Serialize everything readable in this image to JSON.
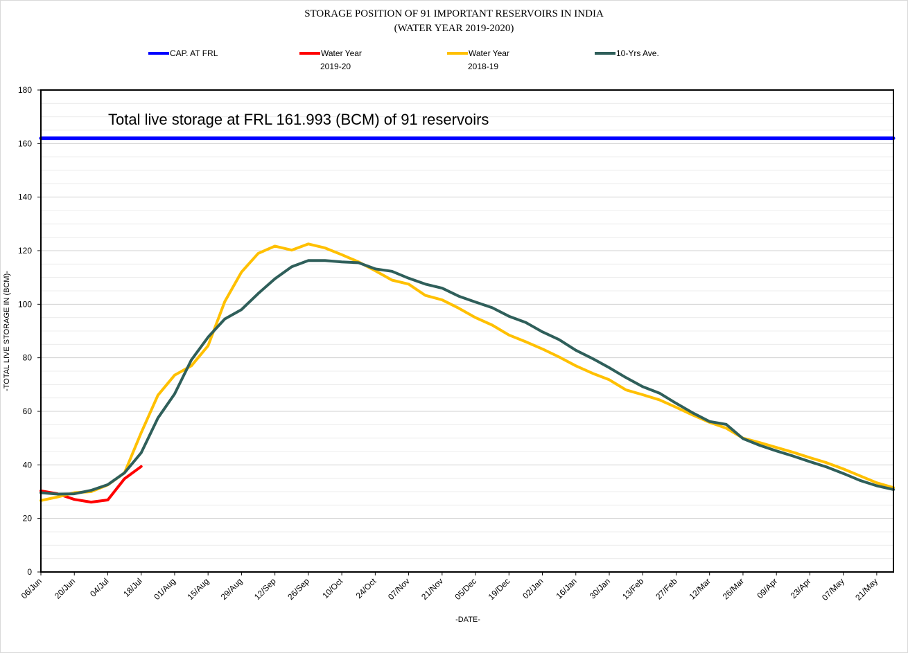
{
  "chart_data": {
    "type": "line",
    "title": "STORAGE POSITION OF 91 IMPORTANT RESERVOIRS IN INDIA",
    "subtitle": "(WATER YEAR 2019-2020)",
    "xlabel": "-DATE-",
    "ylabel": "-TOTAL LIVE STORAGE IN (BCM)-",
    "annotation": "Total live storage at FRL 161.993 (BCM) of 91 reservoirs",
    "ylim": [
      0,
      180
    ],
    "yticks": [
      0,
      20,
      40,
      60,
      80,
      100,
      120,
      140,
      160,
      180
    ],
    "grid": true,
    "legend_position": "top",
    "x_labels": [
      "06/Jun",
      "20/Jun",
      "04/Jul",
      "18/Jul",
      "01/Aug",
      "15/Aug",
      "29/Aug",
      "12/Sep",
      "26/Sep",
      "10/Oct",
      "24/Oct",
      "07/Nov",
      "21/Nov",
      "05/Dec",
      "19/Dec",
      "02/Jan",
      "16/Jan",
      "30/Jan",
      "13/Feb",
      "27/Feb",
      "12/Mar",
      "26/Mar",
      "09/Apr",
      "23/Apr",
      "07/May",
      "21/May"
    ],
    "weeks": 52,
    "series": [
      {
        "name": "CAP. AT FRL",
        "legend_lines": [
          "CAP. AT FRL"
        ],
        "color": "#0000ff",
        "constant": 161.993
      },
      {
        "name": "Water Year 2019-20",
        "legend_lines": [
          "Water Year",
          "2019-20"
        ],
        "color": "#ff0000",
        "values": [
          30.3,
          29.2,
          27.1,
          26.1,
          26.9,
          34.8,
          39.4
        ]
      },
      {
        "name": "Water Year 2018-19",
        "legend_lines": [
          "Water Year",
          "2018-19"
        ],
        "color": "#ffc000",
        "values": [
          26.7,
          28.0,
          29.6,
          30.0,
          32.5,
          37.0,
          52.0,
          66.0,
          73.5,
          77.0,
          84.5,
          101.0,
          112.0,
          119.0,
          121.7,
          120.2,
          122.5,
          121.0,
          118.5,
          115.8,
          112.5,
          109.0,
          107.5,
          103.3,
          101.6,
          98.5,
          95.0,
          92.2,
          88.5,
          86.0,
          83.3,
          80.3,
          77.0,
          74.2,
          71.8,
          68.0,
          66.2,
          64.3,
          61.5,
          58.6,
          55.9,
          53.7,
          50.0,
          48.3,
          46.5,
          44.7,
          42.7,
          40.8,
          38.5,
          35.9,
          33.3,
          31.5
        ]
      },
      {
        "name": "10-Yrs Ave.",
        "legend_lines": [
          "10-Yrs Ave."
        ],
        "color": "#2f5f5a",
        "values": [
          29.6,
          29.1,
          29.2,
          30.5,
          32.6,
          37.0,
          44.5,
          57.5,
          66.5,
          79.2,
          87.7,
          94.5,
          98.0,
          104.0,
          109.5,
          114.0,
          116.3,
          116.3,
          115.8,
          115.5,
          113.2,
          112.3,
          109.7,
          107.5,
          106.0,
          103.0,
          100.8,
          98.7,
          95.5,
          93.2,
          89.7,
          86.8,
          82.8,
          79.7,
          76.3,
          72.6,
          69.2,
          66.8,
          63.0,
          59.4,
          56.2,
          55.1,
          49.8,
          47.3,
          45.2,
          43.3,
          41.2,
          39.2,
          36.8,
          34.2,
          32.2,
          30.8
        ]
      }
    ]
  }
}
